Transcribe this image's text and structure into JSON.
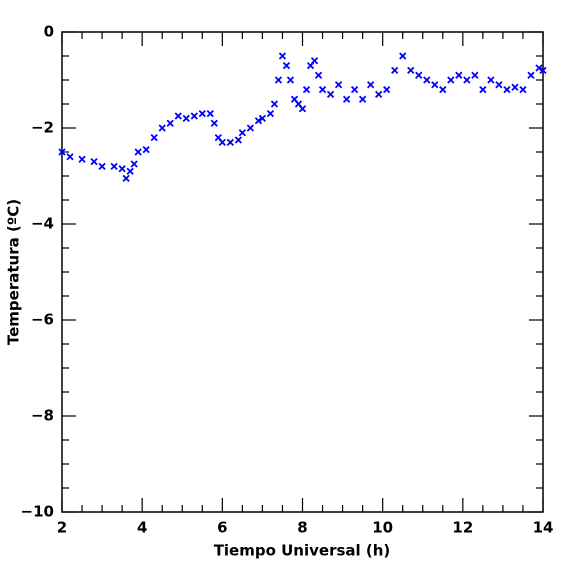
{
  "chart_data": {
    "type": "scatter",
    "x_label": "Tiempo Universal (h)",
    "y_label": "Temperatura (ºC)",
    "series": [
      {
        "color": "#0000ff",
        "x": [
          2,
          2.2,
          2.5,
          2.8,
          3,
          3.3,
          3.5,
          3.6,
          3.7,
          3.8,
          3.9,
          4.1,
          4.3,
          4.5,
          4.7,
          4.9,
          5.1,
          5.3,
          5.5,
          5.7,
          5.8,
          5.9,
          6.0,
          6.2,
          6.4,
          6.5,
          6.7,
          6.9,
          7.0,
          7.2,
          7.3,
          7.4,
          7.5,
          7.6,
          7.7,
          7.8,
          7.9,
          8.0,
          8.1,
          8.2,
          8.3,
          8.4,
          8.5,
          8.7,
          8.9,
          9.1,
          9.3,
          9.5,
          9.7,
          9.9,
          10.1,
          10.3,
          10.5,
          10.7,
          10.9,
          11.1,
          11.3,
          11.5,
          11.7,
          11.9,
          12.1,
          12.3,
          12.5,
          12.7,
          12.9,
          13.1,
          13.3,
          13.5,
          13.7,
          13.9,
          14
        ],
        "values": [
          -2.5,
          -2.6,
          -2.65,
          -2.7,
          -2.8,
          -2.8,
          -2.85,
          -3.05,
          -2.9,
          -2.75,
          -2.5,
          -2.45,
          -2.2,
          -2.0,
          -1.9,
          -1.75,
          -1.8,
          -1.75,
          -1.7,
          -1.7,
          -1.9,
          -2.2,
          -2.3,
          -2.3,
          -2.25,
          -2.1,
          -2.0,
          -1.85,
          -1.8,
          -1.7,
          -1.5,
          -1.0,
          -0.5,
          -0.7,
          -1.0,
          -1.4,
          -1.5,
          -1.6,
          -1.2,
          -0.7,
          -0.6,
          -0.9,
          -1.2,
          -1.3,
          -1.1,
          -1.4,
          -1.2,
          -1.4,
          -1.1,
          -1.3,
          -1.2,
          -0.8,
          -0.5,
          -0.8,
          -0.9,
          -1.0,
          -1.1,
          -1.2,
          -1.0,
          -0.9,
          -1.0,
          -0.9,
          -1.2,
          -1.0,
          -1.1,
          -1.2,
          -1.15,
          -1.2,
          -0.9,
          -0.75,
          -0.8
        ]
      }
    ],
    "xlim": [
      2,
      14
    ],
    "ylim": [
      -10,
      0
    ],
    "xticks": [
      2,
      4,
      6,
      8,
      10,
      12,
      14
    ],
    "yticks": [
      {
        "value": -10,
        "label": "−10"
      },
      {
        "value": -8,
        "label": "−8"
      },
      {
        "value": -6,
        "label": "−6"
      },
      {
        "value": -4,
        "label": "−4"
      },
      {
        "value": -2,
        "label": "−2"
      },
      0
    ],
    "xminorticks": [
      2.5,
      3,
      3.5,
      4.5,
      5,
      5.5,
      6.5,
      7,
      7.5,
      8.5,
      9,
      9.5,
      10.5,
      11,
      11.5,
      12.5,
      13,
      13.5
    ],
    "yminorticks": [
      -9.5,
      -9,
      -8.5,
      -7.5,
      -7,
      -6.5,
      -5.5,
      -5,
      -4.5,
      -3.5,
      -3,
      -2.5,
      -1.5,
      -1,
      -0.5
    ]
  }
}
